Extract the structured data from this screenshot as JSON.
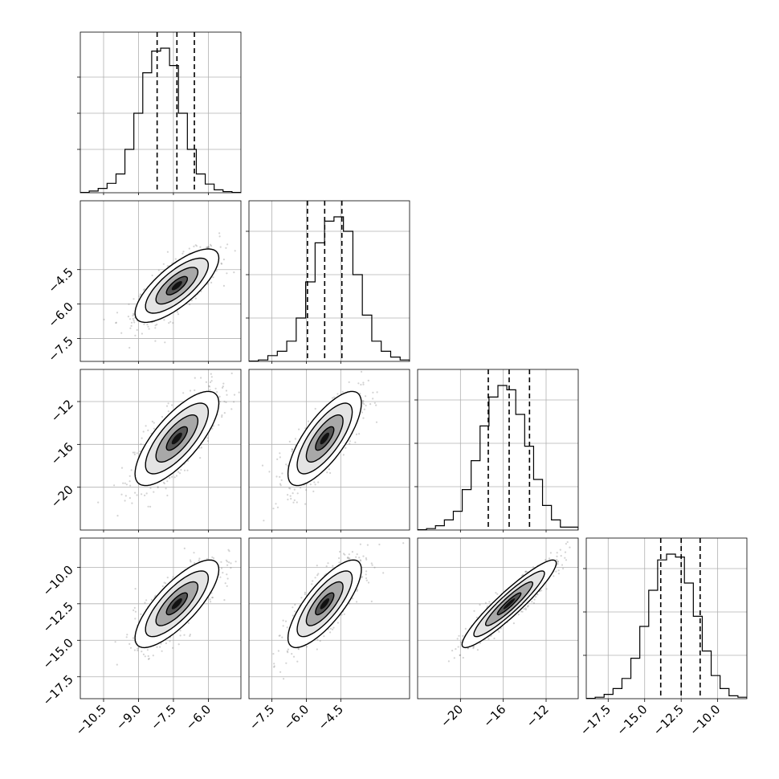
{
  "chart_data": {
    "type": "corner",
    "description_in_picture": "",
    "parameters": [
      {
        "range": [
          -11.5,
          -4.6
        ],
        "ticks": [
          -10.5,
          -9.0,
          -7.5,
          -6.0
        ],
        "tick_labels": [
          "−10.5",
          "−9.0",
          "−7.5",
          "−6.0"
        ],
        "quantiles": [
          -8.2,
          -7.35,
          -6.6
        ],
        "histogram": [
          0.002,
          0.012,
          0.03,
          0.065,
          0.13,
          0.3,
          0.55,
          0.83,
          0.98,
          1.0,
          0.88,
          0.55,
          0.3,
          0.13,
          0.06,
          0.02,
          0.008,
          0.002
        ],
        "hist_gridlines": [
          0.3,
          0.55,
          0.8
        ]
      },
      {
        "range": [
          -8.5,
          -1.5
        ],
        "ticks": [
          -7.5,
          -6.0,
          -4.5
        ],
        "tick_labels": [
          "−7.5",
          "−6.0",
          "−4.5"
        ],
        "quantiles": [
          -5.95,
          -5.2,
          -4.45
        ],
        "histogram": [
          0.002,
          0.01,
          0.04,
          0.07,
          0.14,
          0.3,
          0.55,
          0.82,
          0.97,
          1.0,
          0.9,
          0.6,
          0.32,
          0.14,
          0.07,
          0.03,
          0.01
        ],
        "hist_gridlines": [
          0.3,
          0.6,
          0.9
        ]
      },
      {
        "range": [
          -24.0,
          -9.0
        ],
        "ticks": [
          -20,
          -16,
          -12
        ],
        "tick_labels": [
          "−20",
          "−16",
          "−12"
        ],
        "quantiles": [
          -17.4,
          -15.45,
          -13.55
        ],
        "histogram": [
          0.002,
          0.01,
          0.03,
          0.07,
          0.13,
          0.28,
          0.48,
          0.72,
          0.92,
          1.0,
          0.97,
          0.8,
          0.58,
          0.35,
          0.17,
          0.07,
          0.02,
          0.02
        ],
        "hist_gridlines": [
          0.3,
          0.6,
          0.9
        ]
      },
      {
        "range": [
          -19.0,
          -8.0
        ],
        "ticks": [
          -17.5,
          -15.0,
          -12.5,
          -10.0
        ],
        "tick_labels": [
          "−17.5",
          "−15.0",
          "−12.5",
          "−10.0"
        ],
        "quantiles": [
          -13.9,
          -12.5,
          -11.2
        ],
        "histogram": [
          0.002,
          0.01,
          0.03,
          0.07,
          0.14,
          0.28,
          0.5,
          0.75,
          0.96,
          1.0,
          0.98,
          0.8,
          0.57,
          0.33,
          0.16,
          0.07,
          0.02,
          0.01
        ],
        "hist_gridlines": [
          0.3,
          0.6,
          0.9
        ]
      }
    ],
    "pairs": [
      {
        "row": 1,
        "col": 0,
        "mean": [
          -7.35,
          -5.2
        ],
        "sd": [
          0.9,
          0.8
        ],
        "rho": 0.75
      },
      {
        "row": 2,
        "col": 0,
        "mean": [
          -7.35,
          -15.45
        ],
        "sd": [
          0.9,
          2.2
        ],
        "rho": 0.75
      },
      {
        "row": 2,
        "col": 1,
        "mean": [
          -5.2,
          -15.45
        ],
        "sd": [
          0.8,
          2.2
        ],
        "rho": 0.75
      },
      {
        "row": 3,
        "col": 0,
        "mean": [
          -7.35,
          -12.5
        ],
        "sd": [
          0.9,
          1.5
        ],
        "rho": 0.78
      },
      {
        "row": 3,
        "col": 1,
        "mean": [
          -5.2,
          -12.5
        ],
        "sd": [
          0.8,
          1.5
        ],
        "rho": 0.78
      },
      {
        "row": 3,
        "col": 2,
        "mean": [
          -15.45,
          -12.5
        ],
        "sd": [
          2.2,
          1.5
        ],
        "rho": 0.93
      }
    ],
    "contour_levels_sigma": [
      0.5,
      1.0,
      1.5,
      2.0
    ],
    "grid": true,
    "colors": {
      "lines": "#000000",
      "points": "#808080",
      "grid": "#b0b0b0"
    }
  }
}
